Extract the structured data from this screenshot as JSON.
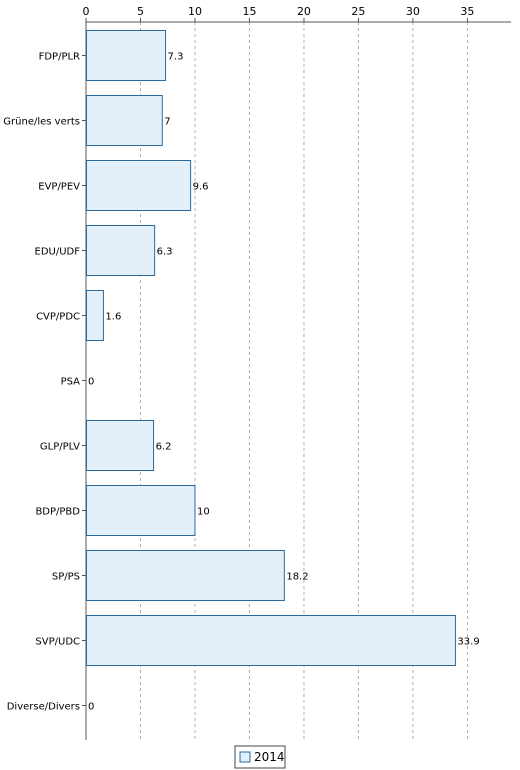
{
  "chart_data": {
    "type": "bar",
    "orientation": "horizontal",
    "categories": [
      "FDP/PLR",
      "Grüne/les verts",
      "EVP/PEV",
      "EDU/UDF",
      "CVP/PDC",
      "PSA",
      "GLP/PLV",
      "BDP/PBD",
      "SP/PS",
      "SVP/UDC",
      "Diverse/Divers"
    ],
    "series": [
      {
        "name": "2014",
        "values": [
          7.3,
          7,
          9.6,
          6.3,
          1.6,
          0,
          6.2,
          10,
          18.2,
          33.9,
          0
        ]
      }
    ],
    "value_labels": [
      "7.3",
      "7",
      "9.6",
      "6.3",
      "1.6",
      "0",
      "6.2",
      "10",
      "18.2",
      "33.9",
      "0"
    ],
    "title": "",
    "xlabel": "",
    "ylabel": "",
    "xlim": [
      0,
      39
    ],
    "xticks": [
      0,
      5,
      10,
      15,
      20,
      25,
      30,
      35
    ],
    "x_axis_position": "top",
    "grid": "vertical dashed",
    "legend": {
      "position": "bottom-center",
      "entries": [
        "2014"
      ]
    },
    "colors": {
      "bar_fill": "#e3f0f9",
      "bar_stroke": "#2b6a9b",
      "grid": "#b0b0b0",
      "axis": "#555555"
    }
  }
}
